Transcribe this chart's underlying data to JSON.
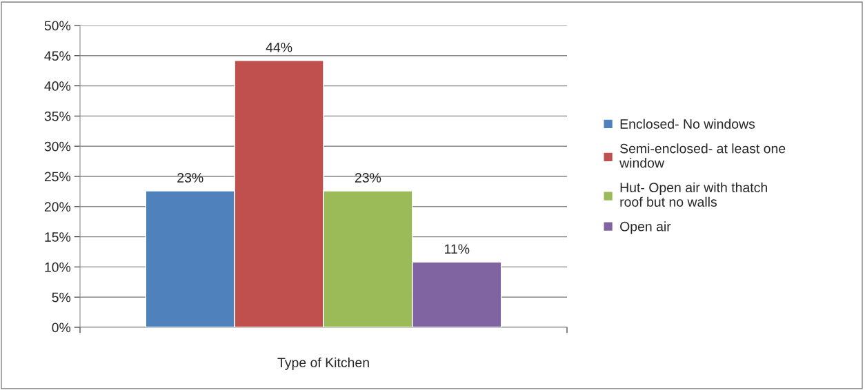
{
  "chart_data": {
    "type": "bar",
    "categories": [
      "Type of Kitchen"
    ],
    "series": [
      {
        "name": "Enclosed- No windows",
        "color": "#4f81bd",
        "values": [
          22.6
        ],
        "value_labels": [
          "23%"
        ]
      },
      {
        "name": "Semi-enclosed- at least one window",
        "color": "#c0504d",
        "values": [
          44.2
        ],
        "value_labels": [
          "44%"
        ]
      },
      {
        "name": "Hut- Open air with thatch roof but no walls",
        "color": "#9bbb59",
        "values": [
          22.6
        ],
        "value_labels": [
          "23%"
        ]
      },
      {
        "name": "Open air",
        "color": "#8064a2",
        "values": [
          10.8
        ],
        "value_labels": [
          "11%"
        ]
      }
    ],
    "ylim": [
      0,
      50
    ],
    "yticks": [
      {
        "value": 0,
        "label": "0%"
      },
      {
        "value": 5,
        "label": "5%"
      },
      {
        "value": 10,
        "label": "10%"
      },
      {
        "value": 15,
        "label": "15%"
      },
      {
        "value": 20,
        "label": "20%"
      },
      {
        "value": 25,
        "label": "25%"
      },
      {
        "value": 30,
        "label": "30%"
      },
      {
        "value": 35,
        "label": "35%"
      },
      {
        "value": 40,
        "label": "40%"
      },
      {
        "value": 45,
        "label": "45%"
      },
      {
        "value": 50,
        "label": "50%"
      }
    ],
    "grid": "y",
    "legend": "right"
  }
}
